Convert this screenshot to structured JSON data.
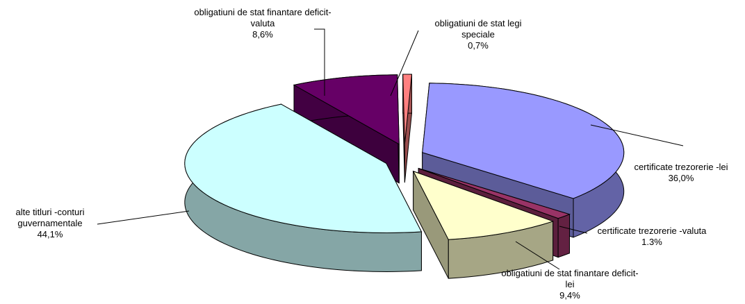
{
  "chart_data": {
    "type": "pie",
    "categories": [
      "certificate trezorerie -lei",
      "certificate trezorerie -valuta",
      "obligatiuni de stat finantare deficit-lei",
      "alte titluri -conturi guvernamentale",
      "obligatiuni de stat finantare deficit- valuta",
      "obligatiuni de stat legi speciale"
    ],
    "values": [
      36.0,
      1.3,
      9.4,
      44.1,
      8.6,
      0.7
    ],
    "value_labels": [
      "36,0%",
      "1.3%",
      "9,4%",
      "44,1%",
      "8,6%",
      "0,7%"
    ],
    "colors": [
      "#9999FF",
      "#993366",
      "#FFFFCC",
      "#CCFFFF",
      "#660066",
      "#FF8080"
    ],
    "three_d": true,
    "exploded": true
  }
}
